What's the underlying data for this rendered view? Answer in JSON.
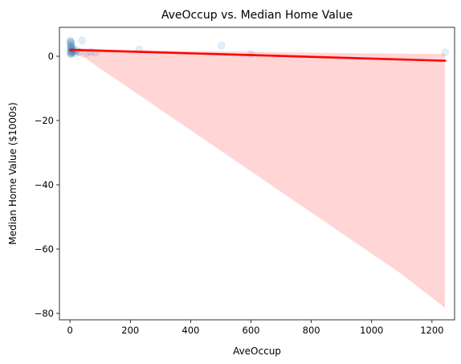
{
  "chart_data": {
    "type": "scatter",
    "title": "AveOccup vs. Median Home Value",
    "xlabel": "AveOccup",
    "ylabel": "Median Home Value ($1000s)",
    "xlim": [
      -35,
      1275
    ],
    "ylim": [
      -82,
      9
    ],
    "xticks": [
      0,
      200,
      400,
      600,
      800,
      1000,
      1200
    ],
    "yticks": [
      -80,
      -60,
      -40,
      -20,
      0
    ],
    "ytick_labels": [
      "−80",
      "−60",
      "−40",
      "−20",
      "0"
    ],
    "grid": false,
    "legend": "none",
    "scatter_color": "#1f77b4",
    "scatter_alpha": 0.12,
    "regression_color": "#ff0000",
    "ci_color": "#ffb3b3",
    "points": [
      {
        "x": 1.2,
        "y": 4.9
      },
      {
        "x": 1.8,
        "y": 4.5
      },
      {
        "x": 2.3,
        "y": 4.1
      },
      {
        "x": 2.7,
        "y": 3.7
      },
      {
        "x": 3.1,
        "y": 3.2
      },
      {
        "x": 3.6,
        "y": 2.8
      },
      {
        "x": 4.0,
        "y": 2.4
      },
      {
        "x": 4.5,
        "y": 2.0
      },
      {
        "x": 2.2,
        "y": 1.6
      },
      {
        "x": 2.9,
        "y": 1.2
      },
      {
        "x": 3.4,
        "y": 0.9
      },
      {
        "x": 1.5,
        "y": 0.6
      },
      {
        "x": 5.0,
        "y": 1.5
      },
      {
        "x": 6.5,
        "y": 3.0
      },
      {
        "x": 2.0,
        "y": 2.6
      },
      {
        "x": 3.8,
        "y": 4.3
      },
      {
        "x": 4.8,
        "y": 0.8
      },
      {
        "x": 8.0,
        "y": 1.1
      },
      {
        "x": 10.0,
        "y": 2.2
      },
      {
        "x": 12.0,
        "y": 1.4
      },
      {
        "x": 18.0,
        "y": 1.0
      },
      {
        "x": 22.0,
        "y": 1.9
      },
      {
        "x": 30.0,
        "y": 1.3
      },
      {
        "x": 40.0,
        "y": 4.9
      },
      {
        "x": 55.0,
        "y": 1.0
      },
      {
        "x": 70.0,
        "y": 1.4
      },
      {
        "x": 85.0,
        "y": 1.1
      },
      {
        "x": 230.0,
        "y": 2.1
      },
      {
        "x": 502.0,
        "y": 3.4
      },
      {
        "x": 600.0,
        "y": 0.7
      },
      {
        "x": 1243.0,
        "y": 1.2
      }
    ],
    "regression": {
      "x": [
        1,
        1243
      ],
      "y": [
        2.0,
        -1.4
      ]
    },
    "confidence_band": {
      "x": [
        1,
        20,
        50,
        100,
        200,
        300,
        400,
        500,
        600,
        700,
        800,
        900,
        1000,
        1100,
        1243
      ],
      "upper": [
        2.9,
        2.6,
        2.4,
        2.2,
        2.0,
        1.8,
        1.6,
        1.5,
        1.4,
        1.2,
        1.1,
        1.0,
        0.9,
        0.8,
        0.7
      ],
      "lower": [
        1.1,
        0.6,
        -0.5,
        -3.8,
        -10.2,
        -16.6,
        -23.0,
        -29.4,
        -35.8,
        -42.2,
        -48.6,
        -55.0,
        -61.4,
        -67.8,
        -78.3
      ]
    }
  }
}
